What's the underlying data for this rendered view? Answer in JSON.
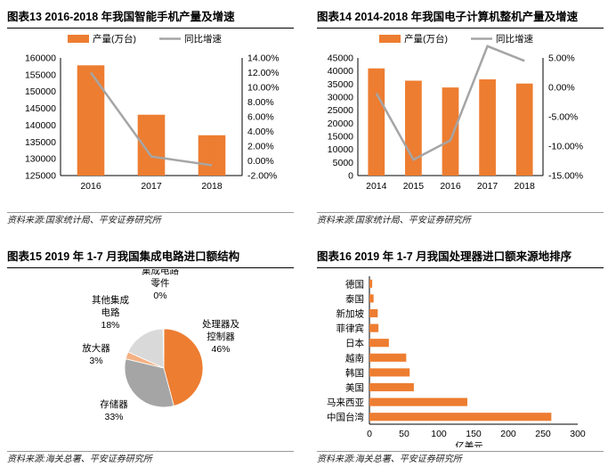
{
  "colors": {
    "bar": "#ED7D31",
    "line": "#A5A5A5",
    "pie": [
      "#ED7D31",
      "#A5A5A5",
      "#F4B183",
      "#D9D9D9"
    ]
  },
  "panels": [
    {
      "title": "图表13    2016-2018 年我国智能手机产量及增速",
      "source": "资料来源:国家统计局、平安证券研究所"
    },
    {
      "title": "图表14    2014-2018 年我国电子计算机整机产量及增速",
      "source": "资料来源:国家统计局、平安证券研究所"
    },
    {
      "title": "图表15    2019 年 1-7 月我国集成电路进口额结构",
      "source": "资料来源:海关总署、平安证券研究所"
    },
    {
      "title": "图表16    2019 年 1-7 月我国处理器进口额来源地排序",
      "source": "资料来源:海关总署、平安证券研究所"
    }
  ],
  "chart_data": [
    {
      "type": "bar",
      "categories": [
        "2016",
        "2017",
        "2018"
      ],
      "series": [
        {
          "name": "产量(万台)",
          "type": "bar",
          "axis": "left",
          "values": [
            157800,
            143100,
            137000
          ]
        },
        {
          "name": "同比增速",
          "type": "line",
          "axis": "right",
          "values": [
            12.0,
            0.6,
            -0.6
          ]
        }
      ],
      "ylim": [
        125000,
        160000
      ],
      "yticks": [
        "125000",
        "130000",
        "135000",
        "140000",
        "145000",
        "150000",
        "155000",
        "160000"
      ],
      "y2lim": [
        -2,
        14
      ],
      "y2ticks": [
        "-2.00%",
        "0.00%",
        "2.00%",
        "4.00%",
        "6.00%",
        "8.00%",
        "10.00%",
        "12.00%",
        "14.00%"
      ],
      "legend": "top"
    },
    {
      "type": "bar",
      "categories": [
        "2014",
        "2015",
        "2016",
        "2017",
        "2018"
      ],
      "series": [
        {
          "name": "产量(万台)",
          "type": "bar",
          "axis": "left",
          "values": [
            41000,
            36300,
            33700,
            36800,
            35200
          ]
        },
        {
          "name": "同比增速",
          "type": "line",
          "axis": "right",
          "values": [
            -1.0,
            -12.3,
            -9.0,
            7.0,
            4.5
          ]
        }
      ],
      "ylim": [
        0,
        45000
      ],
      "yticks": [
        "0",
        "5000",
        "10000",
        "15000",
        "20000",
        "25000",
        "30000",
        "35000",
        "40000",
        "45000"
      ],
      "y2lim": [
        -15,
        5
      ],
      "y2ticks": [
        "-15.00%",
        "-10.00%",
        "-5.00%",
        "0.00%",
        "5.00%"
      ],
      "legend": "top"
    },
    {
      "type": "pie",
      "slices": [
        {
          "name": "处理器及控制器",
          "value": 46,
          "label_lines": [
            "处理器及",
            "控制器",
            "46%"
          ]
        },
        {
          "name": "存储器",
          "value": 33,
          "label_lines": [
            "存储器",
            "33%"
          ]
        },
        {
          "name": "放大器",
          "value": 3,
          "label_lines": [
            "放大器",
            "3%"
          ]
        },
        {
          "name": "其他集成电路",
          "value": 18,
          "label_lines": [
            "其他集成",
            "电路",
            "18%"
          ]
        },
        {
          "name": "集成电路零件",
          "value": 0.3,
          "label_lines": [
            "集成电路",
            "零件",
            "0%"
          ]
        }
      ]
    },
    {
      "type": "bar",
      "orientation": "horizontal",
      "categories": [
        "德国",
        "泰国",
        "新加坡",
        "菲律宾",
        "日本",
        "越南",
        "韩国",
        "美国",
        "马来西亚",
        "中国台湾"
      ],
      "values": [
        4,
        6,
        12,
        13,
        28,
        53,
        58,
        64,
        141,
        262
      ],
      "xlim": [
        0,
        300
      ],
      "xticks": [
        "0",
        "50",
        "100",
        "150",
        "200",
        "250",
        "300"
      ],
      "xlabel": "亿美元"
    }
  ]
}
